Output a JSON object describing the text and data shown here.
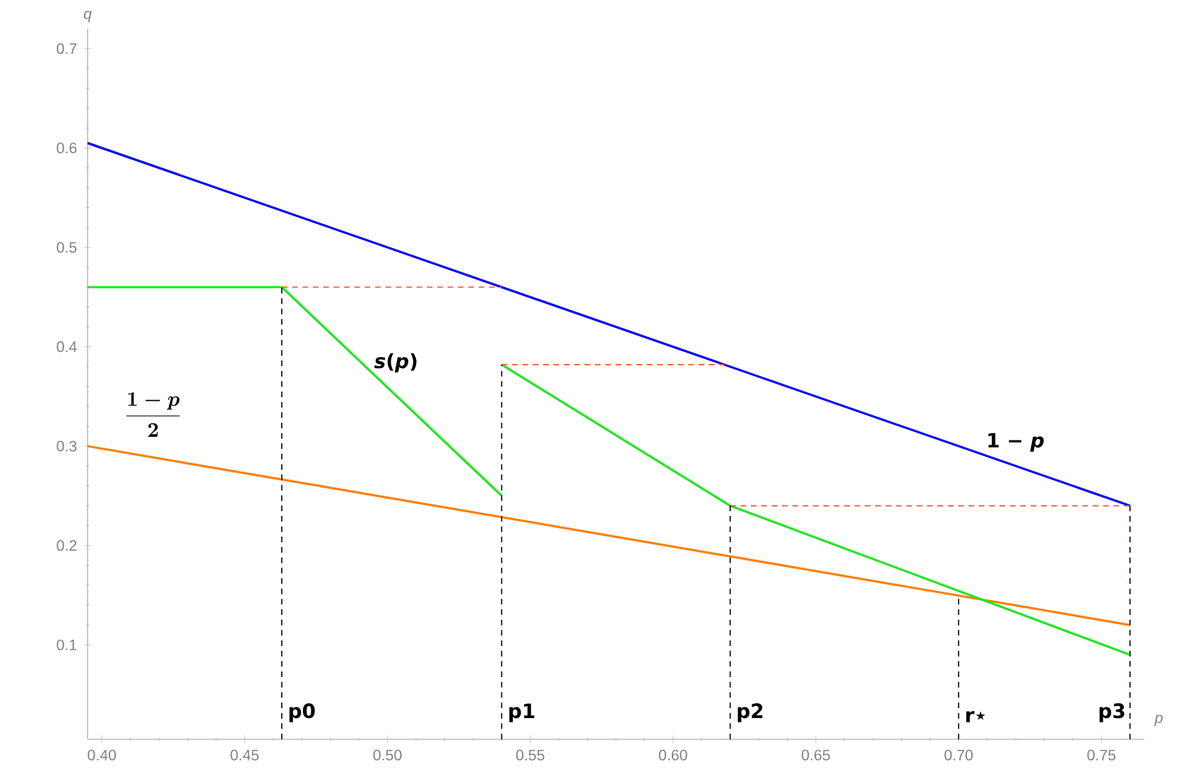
{
  "chart_data": {
    "type": "line",
    "xlabel": "p",
    "ylabel": "q",
    "xlim": [
      0.395,
      0.765
    ],
    "ylim": [
      0.005,
      0.72
    ],
    "xticks": [
      {
        "value": 0.4,
        "label": "0.40"
      },
      {
        "value": 0.45,
        "label": "0.45"
      },
      {
        "value": 0.5,
        "label": "0.50"
      },
      {
        "value": 0.55,
        "label": "0.55"
      },
      {
        "value": 0.6,
        "label": "0.60"
      },
      {
        "value": 0.65,
        "label": "0.65"
      },
      {
        "value": 0.7,
        "label": "0.70"
      },
      {
        "value": 0.75,
        "label": "0.75"
      }
    ],
    "yticks": [
      0.1,
      0.2,
      0.3,
      0.4,
      0.5,
      0.6,
      0.7
    ],
    "series": [
      {
        "color": "#0000ff",
        "x": [
          0.395,
          0.76
        ],
        "values": [
          0.605,
          0.24
        ]
      },
      {
        "color": "#ff8000",
        "x": [
          0.395,
          0.76
        ],
        "values": [
          0.3,
          0.12
        ]
      },
      {
        "color": "#22e622",
        "x": [
          0.395,
          0.463,
          0.54
        ],
        "values": [
          0.46,
          0.46,
          0.25
        ]
      },
      {
        "color": "#22e622",
        "x": [
          0.54,
          0.62,
          0.76
        ],
        "values": [
          0.382,
          0.24,
          0.09
        ]
      },
      {
        "color": "#f05030",
        "line_style": "dashed",
        "x": [
          0.463,
          0.54
        ],
        "values": [
          0.46,
          0.46
        ]
      },
      {
        "color": "#f05030",
        "line_style": "dashed",
        "x": [
          0.54,
          0.618
        ],
        "values": [
          0.382,
          0.382
        ]
      },
      {
        "color": "#f05030",
        "line_style": "dashed",
        "x": [
          0.62,
          0.76
        ],
        "values": [
          0.24,
          0.24
        ]
      },
      {
        "color": "#000000",
        "line_style": "dashed",
        "x": [
          0.463,
          0.463
        ],
        "values": [
          0.005,
          0.46
        ]
      },
      {
        "color": "#000000",
        "line_style": "dashed",
        "x": [
          0.54,
          0.54
        ],
        "values": [
          0.005,
          0.382
        ]
      },
      {
        "color": "#000000",
        "line_style": "dashed",
        "x": [
          0.62,
          0.62
        ],
        "values": [
          0.005,
          0.24
        ]
      },
      {
        "color": "#000000",
        "line_style": "dashed",
        "x": [
          0.7,
          0.7
        ],
        "values": [
          0.005,
          0.15
        ]
      },
      {
        "color": "#000000",
        "line_style": "dashed",
        "x": [
          0.76,
          0.76
        ],
        "values": [
          0.005,
          0.24
        ]
      }
    ],
    "annotations": [
      "1 − *p*",
      "\\frac{1-p}{2}",
      "*s*(*p*)",
      {
        "text": "p0",
        "x": 0.463,
        "y": 0.02
      },
      {
        "text": "p1",
        "x": 0.54,
        "y": 0.02
      },
      {
        "text": "p2",
        "x": 0.62,
        "y": 0.02
      },
      {
        "text": "r⋆",
        "x": 0.7,
        "y": 0.02
      },
      {
        "text": "p3",
        "x": 0.76,
        "y": 0.02
      }
    ]
  }
}
